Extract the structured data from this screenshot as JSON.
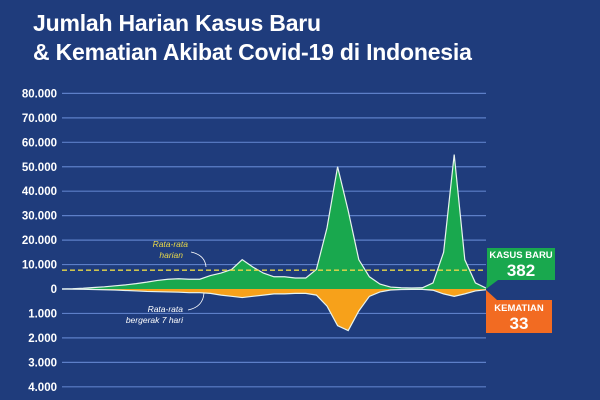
{
  "title": {
    "line1": "Jumlah Harian Kasus Baru",
    "line2": "& Kematian Akibat Covid-19 di Indonesia"
  },
  "chart_data": {
    "type": "area",
    "title": "Jumlah Harian Kasus Baru & Kematian Akibat Covid-19 di Indonesia",
    "upper_axis": {
      "ticks": [
        "0",
        "10.000",
        "20.000",
        "30.000",
        "40.000",
        "50.000",
        "60.000",
        "70.000",
        "80.000"
      ],
      "values": [
        0,
        10000,
        20000,
        30000,
        40000,
        50000,
        60000,
        70000,
        80000
      ],
      "ylim": [
        0,
        80000
      ]
    },
    "lower_axis": {
      "ticks": [
        "1.000",
        "2.000",
        "3.000",
        "4.000"
      ],
      "values": [
        1000,
        2000,
        3000,
        4000
      ],
      "ylim": [
        0,
        4000
      ],
      "direction": "downward"
    },
    "grid": true,
    "series": [
      {
        "name": "Kasus Baru",
        "color": "#19a84e",
        "direction": "up",
        "values": [
          0,
          100,
          300,
          600,
          900,
          1300,
          1700,
          2200,
          2800,
          3500,
          4000,
          4200,
          4000,
          4000,
          5500,
          6500,
          8000,
          12000,
          9000,
          6500,
          5000,
          5000,
          4500,
          4500,
          8000,
          25000,
          50000,
          32000,
          12000,
          5000,
          2000,
          800,
          500,
          400,
          500,
          2500,
          15000,
          55000,
          12000,
          2500,
          382
        ]
      },
      {
        "name": "Kematian",
        "color": "#f7a11a",
        "direction": "down",
        "values": [
          0,
          5,
          10,
          20,
          30,
          40,
          60,
          80,
          100,
          110,
          120,
          130,
          150,
          150,
          180,
          250,
          300,
          350,
          300,
          250,
          200,
          200,
          180,
          180,
          250,
          700,
          1500,
          1700,
          900,
          300,
          120,
          40,
          20,
          15,
          15,
          50,
          200,
          300,
          200,
          80,
          33
        ]
      }
    ],
    "average_line": {
      "label": "Rata-rata harian",
      "value": 7700,
      "color": "#e8d84a",
      "style": "dashed"
    },
    "moving_average_label": "Rata-rata bergerak 7 hari",
    "annotations": {
      "avg_line1": "Rata-rata",
      "avg_line2": "harian",
      "ma_line1": "Rata-rata",
      "ma_line2": "bergerak 7 hari"
    },
    "callouts": {
      "cases": {
        "label": "KASUS BARU",
        "value": "382",
        "color": "#19a84e"
      },
      "deaths": {
        "label": "KEMATIAN",
        "value": "33",
        "color": "#f26b22"
      }
    }
  }
}
